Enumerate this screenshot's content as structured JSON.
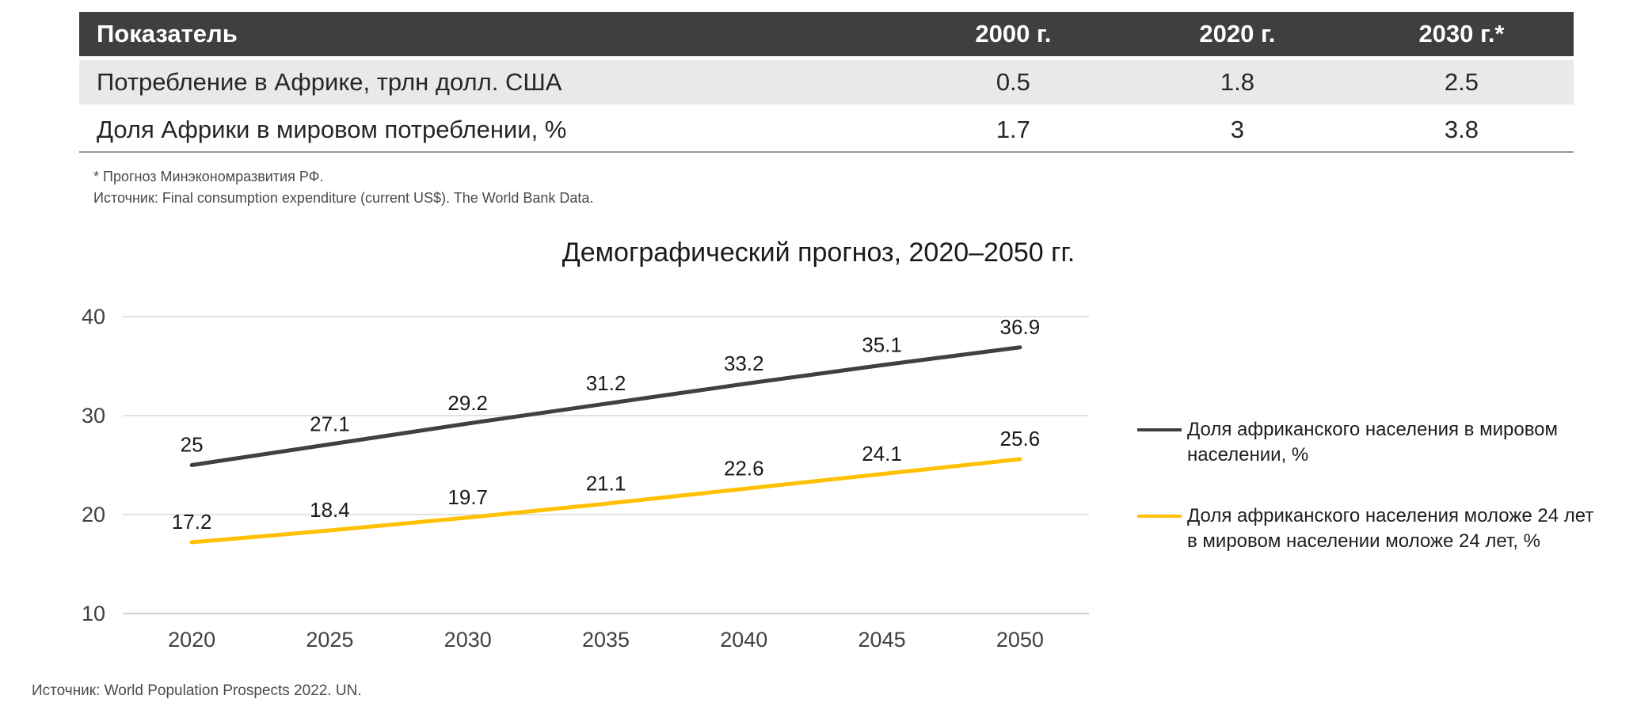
{
  "colors": {
    "table_header_bg": "#3f3f3f",
    "table_row_alt_bg": "#e9e9e9",
    "series_dark": "#404040",
    "series_yellow": "#FFC000",
    "gridline": "#d9d9d9"
  },
  "chart_data": [
    {
      "type": "table",
      "columns": [
        "Показатель",
        "2000 г.",
        "2020 г.",
        "2030 г.*"
      ],
      "rows": [
        [
          "Потребление в Африке, трлн долл. США",
          "0.5",
          "1.8",
          "2.5"
        ],
        [
          "Доля Африки в мировом потреблении, %",
          "1.7",
          "3",
          "3.8"
        ]
      ],
      "footnotes": [
        "* Прогноз Минэкономразвития РФ.",
        "Источник: Final consumption expenditure (current US$). The World Bank Data."
      ]
    },
    {
      "type": "line",
      "title": "Демографический прогноз, 2020–2050 гг.",
      "x": [
        2020,
        2025,
        2030,
        2035,
        2040,
        2045,
        2050
      ],
      "series": [
        {
          "name": "Доля африканского населения в мировом населении, %",
          "values": [
            25,
            27.1,
            29.2,
            31.2,
            33.2,
            35.1,
            36.9
          ],
          "color": "#404040"
        },
        {
          "name": "Доля африканского населения моложе 24 лет в мировом населении моложе 24 лет, %",
          "values": [
            17.2,
            18.4,
            19.7,
            21.1,
            22.6,
            24.1,
            25.6
          ],
          "color": "#FFC000"
        }
      ],
      "ylim": [
        10,
        40
      ],
      "yticks": [
        10,
        20,
        30,
        40
      ],
      "grid": true,
      "legend_position": "right",
      "source": "Источник: World Population Prospects 2022. UN."
    }
  ]
}
